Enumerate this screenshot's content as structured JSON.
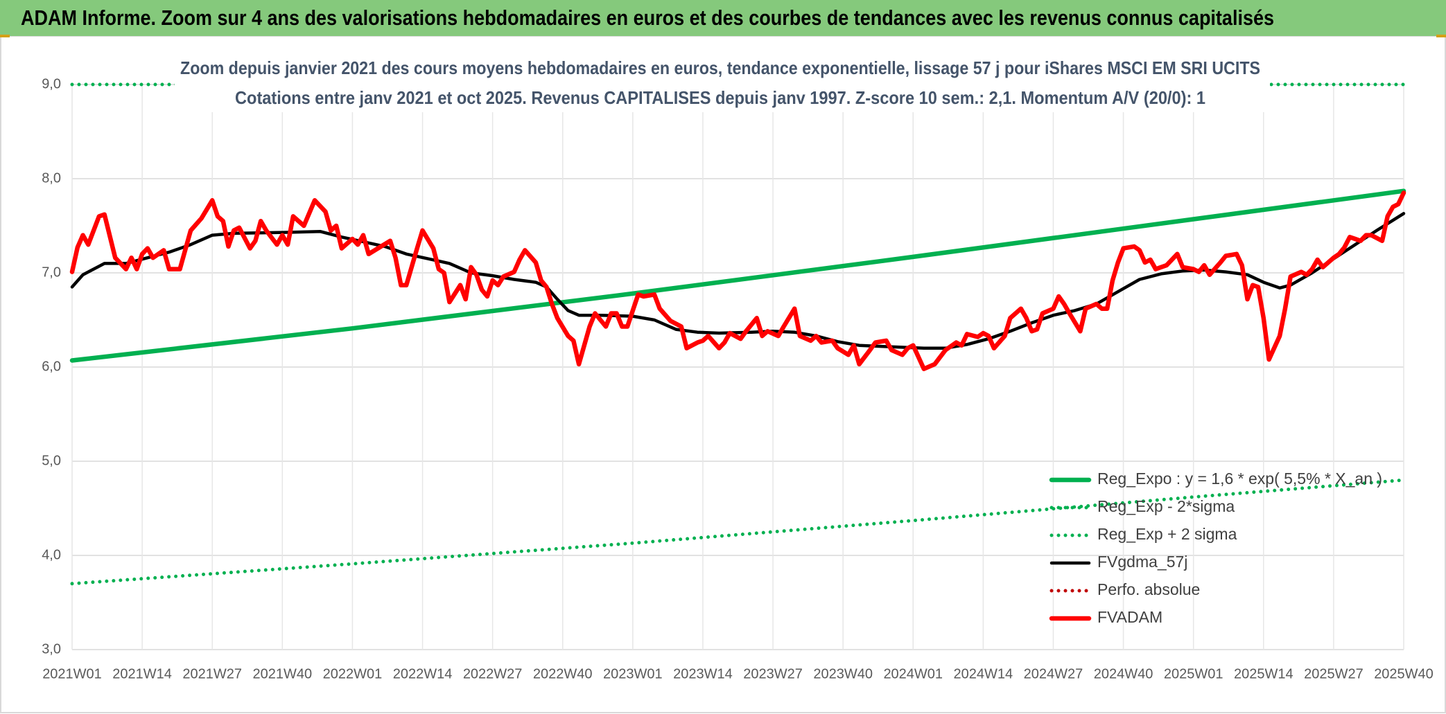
{
  "chart_data": {
    "type": "line",
    "title": "ADAM Informe. Zoom sur 4 ans des valorisations hebdomadaires en euros et des courbes de tendances avec les revenus connus capitalisés",
    "subtitle": [
      "Zoom depuis janvier 2021 des cours moyens hebdomadaires en euros, tendance exponentielle, lissage 57 j pour iShares MSCI EM SRI UCITS",
      "Cotations entre janv 2021 et oct 2025. Revenus CAPITALISES depuis janv 1997. Z-score 10 sem.: 2,1. Momentum A/V (20/0): 1"
    ],
    "xlim": [
      0,
      247
    ],
    "xticks": [
      {
        "value": 0,
        "label": "2021W01"
      },
      {
        "value": 13,
        "label": "2021W14"
      },
      {
        "value": 26,
        "label": "2021W27"
      },
      {
        "value": 39,
        "label": "2021W40"
      },
      {
        "value": 52,
        "label": "2022W01"
      },
      {
        "value": 65,
        "label": "2022W14"
      },
      {
        "value": 78,
        "label": "2022W27"
      },
      {
        "value": 91,
        "label": "2022W40"
      },
      {
        "value": 104,
        "label": "2023W01"
      },
      {
        "value": 117,
        "label": "2023W14"
      },
      {
        "value": 130,
        "label": "2023W27"
      },
      {
        "value": 143,
        "label": "2023W40"
      },
      {
        "value": 156,
        "label": "2024W01"
      },
      {
        "value": 169,
        "label": "2024W14"
      },
      {
        "value": 182,
        "label": "2024W27"
      },
      {
        "value": 195,
        "label": "2024W40"
      },
      {
        "value": 208,
        "label": "2025W01"
      },
      {
        "value": 221,
        "label": "2025W14"
      },
      {
        "value": 234,
        "label": "2025W27"
      },
      {
        "value": 247,
        "label": "2025W40"
      }
    ],
    "ylim": [
      3,
      9
    ],
    "yticks": [
      {
        "value": 3,
        "label": "3,0"
      },
      {
        "value": 4,
        "label": "4,0"
      },
      {
        "value": 5,
        "label": "5,0"
      },
      {
        "value": 6,
        "label": "6,0"
      },
      {
        "value": 7,
        "label": "7,0"
      },
      {
        "value": 8,
        "label": "8,0"
      },
      {
        "value": 9,
        "label": "9,0"
      }
    ],
    "grid": true,
    "legend": "bottom-right",
    "series": [
      {
        "name": "Reg_Expo : y = 1,6 * exp( 5,5% * X_an )",
        "color": "#00b050",
        "style": "solid",
        "x": [
          0,
          52,
          104,
          156,
          208,
          247
        ],
        "values": [
          6.07,
          6.41,
          6.78,
          7.17,
          7.57,
          7.87
        ]
      },
      {
        "name": "Reg_Exp - 2*sigma",
        "color": "#00b050",
        "style": "dotted",
        "x": [
          0,
          52,
          104,
          156,
          208,
          247
        ],
        "values": [
          3.7,
          3.91,
          4.13,
          4.37,
          4.62,
          4.8
        ]
      },
      {
        "name": "Reg_Exp + 2 sigma",
        "color": "#00b050",
        "style": "dotted",
        "x": [
          0,
          247
        ],
        "values": [
          9,
          9
        ]
      },
      {
        "name": "FVgdma_57j",
        "color": "#000000",
        "style": "solid",
        "x": [
          0,
          2,
          5,
          6,
          10,
          14,
          18,
          22,
          26,
          30,
          40,
          46,
          50,
          54,
          58,
          62,
          66,
          70,
          74,
          78,
          82,
          86,
          88,
          90,
          92,
          94,
          98,
          104,
          108,
          112,
          116,
          120,
          126,
          130,
          134,
          138,
          142,
          146,
          150,
          158,
          162,
          166,
          170,
          174,
          178,
          182,
          186,
          190,
          194,
          198,
          202,
          206,
          210,
          214,
          218,
          221,
          224,
          226,
          230,
          234,
          238,
          242,
          247
        ],
        "values": [
          6.85,
          6.98,
          7.07,
          7.1,
          7.1,
          7.16,
          7.22,
          7.3,
          7.4,
          7.42,
          7.43,
          7.44,
          7.38,
          7.33,
          7.28,
          7.2,
          7.15,
          7.1,
          7.0,
          6.97,
          6.93,
          6.9,
          6.85,
          6.72,
          6.6,
          6.55,
          6.55,
          6.54,
          6.5,
          6.4,
          6.37,
          6.36,
          6.37,
          6.38,
          6.37,
          6.33,
          6.27,
          6.23,
          6.22,
          6.2,
          6.2,
          6.24,
          6.3,
          6.38,
          6.47,
          6.55,
          6.6,
          6.67,
          6.8,
          6.93,
          6.99,
          7.02,
          7.03,
          7.01,
          6.98,
          6.9,
          6.84,
          6.87,
          7.0,
          7.15,
          7.3,
          7.45,
          7.63
        ]
      },
      {
        "name": "Perfo. absolue",
        "color": "#c00000",
        "style": "dotted",
        "x": [],
        "values": []
      },
      {
        "name": "FVADAM",
        "color": "#ff0000",
        "style": "solid",
        "x": [
          0,
          1,
          2,
          3,
          5,
          6,
          8,
          10,
          11,
          12,
          13,
          14,
          15,
          17,
          18,
          20,
          22,
          24,
          26,
          27,
          28,
          29,
          30,
          31,
          33,
          34,
          35,
          36,
          38,
          39,
          40,
          41,
          43,
          45,
          47,
          48,
          49,
          50,
          52,
          53,
          54,
          55,
          57,
          59,
          60,
          61,
          62,
          64,
          65,
          67,
          68,
          69,
          70,
          72,
          73,
          74,
          75,
          76,
          77,
          78,
          79,
          80,
          82,
          83,
          84,
          86,
          87,
          88,
          89,
          90,
          92,
          93,
          94,
          96,
          97,
          99,
          100,
          101,
          102,
          103,
          105,
          106,
          108,
          109,
          111,
          113,
          114,
          116,
          117,
          118,
          120,
          121,
          122,
          124,
          125,
          127,
          128,
          129,
          131,
          132,
          134,
          135,
          137,
          138,
          139,
          141,
          142,
          144,
          145,
          146,
          148,
          149,
          151,
          152,
          154,
          155,
          156,
          158,
          160,
          162,
          164,
          165,
          166,
          168,
          169,
          170,
          171,
          173,
          174,
          176,
          177,
          178,
          179,
          180,
          182,
          183,
          184,
          185,
          187,
          188,
          190,
          191,
          192,
          193,
          194,
          195,
          197,
          198,
          199,
          200,
          201,
          203,
          205,
          206,
          208,
          209,
          210,
          211,
          213,
          214,
          216,
          217,
          218,
          219,
          220,
          221,
          222,
          224,
          225,
          226,
          228,
          229,
          230,
          231,
          232,
          234,
          235,
          236,
          237,
          238,
          239,
          240,
          241,
          243,
          244,
          245,
          246,
          247
        ],
        "values": [
          7.01,
          7.27,
          7.4,
          7.3,
          7.6,
          7.62,
          7.16,
          7.04,
          7.16,
          7.04,
          7.2,
          7.26,
          7.16,
          7.24,
          7.04,
          7.04,
          7.45,
          7.58,
          7.77,
          7.6,
          7.55,
          7.28,
          7.45,
          7.48,
          7.26,
          7.34,
          7.55,
          7.45,
          7.3,
          7.4,
          7.3,
          7.6,
          7.5,
          7.77,
          7.65,
          7.45,
          7.5,
          7.26,
          7.36,
          7.3,
          7.4,
          7.2,
          7.27,
          7.34,
          7.16,
          6.87,
          6.87,
          7.26,
          7.45,
          7.26,
          7.04,
          7.0,
          6.69,
          6.87,
          6.72,
          7.06,
          6.98,
          6.82,
          6.75,
          6.92,
          6.87,
          6.96,
          7.01,
          7.14,
          7.24,
          7.11,
          6.92,
          6.85,
          6.67,
          6.52,
          6.33,
          6.28,
          6.03,
          6.43,
          6.57,
          6.43,
          6.57,
          6.57,
          6.43,
          6.43,
          6.77,
          6.75,
          6.77,
          6.62,
          6.49,
          6.43,
          6.2,
          6.26,
          6.28,
          6.33,
          6.2,
          6.26,
          6.36,
          6.3,
          6.38,
          6.52,
          6.33,
          6.38,
          6.33,
          6.43,
          6.62,
          6.33,
          6.28,
          6.33,
          6.26,
          6.28,
          6.2,
          6.13,
          6.23,
          6.03,
          6.18,
          6.26,
          6.28,
          6.18,
          6.13,
          6.2,
          6.23,
          5.98,
          6.03,
          6.18,
          6.26,
          6.23,
          6.35,
          6.32,
          6.36,
          6.33,
          6.2,
          6.33,
          6.52,
          6.62,
          6.52,
          6.38,
          6.4,
          6.57,
          6.62,
          6.75,
          6.67,
          6.57,
          6.38,
          6.62,
          6.67,
          6.62,
          6.62,
          6.92,
          7.11,
          7.26,
          7.28,
          7.24,
          7.11,
          7.14,
          7.04,
          7.08,
          7.2,
          7.06,
          7.04,
          7.01,
          7.08,
          6.98,
          7.11,
          7.18,
          7.2,
          7.08,
          6.72,
          6.87,
          6.85,
          6.52,
          6.08,
          6.33,
          6.62,
          6.96,
          7.01,
          6.98,
          7.04,
          7.14,
          7.06,
          7.16,
          7.2,
          7.27,
          7.38,
          7.36,
          7.34,
          7.4,
          7.4,
          7.34,
          7.6,
          7.7,
          7.73,
          7.85
        ]
      }
    ]
  }
}
